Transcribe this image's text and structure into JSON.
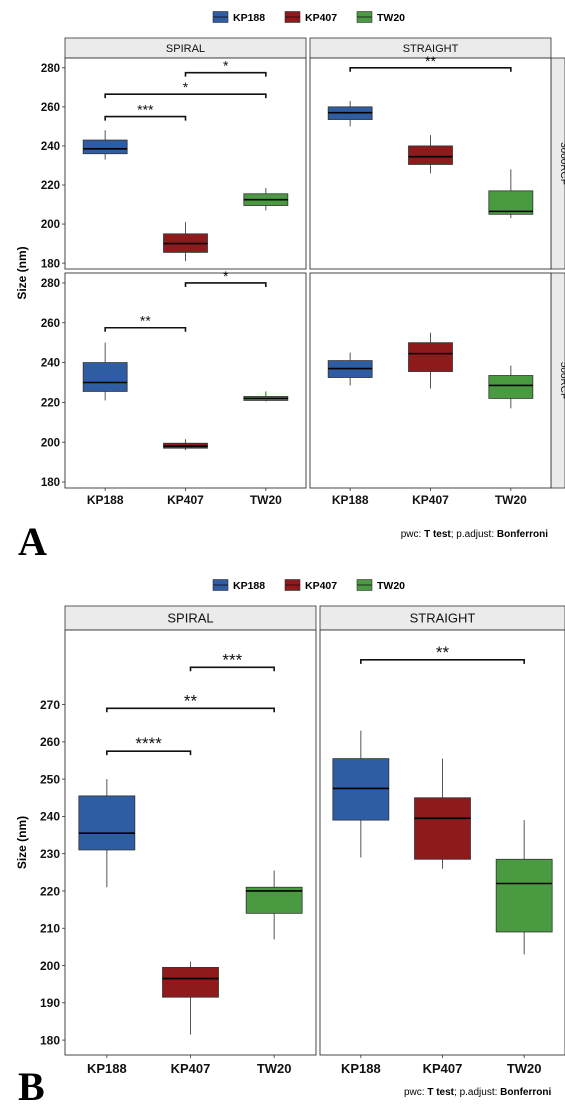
{
  "colors": {
    "KP188": "#2f5da3",
    "KP407": "#8e1a1b",
    "TW20": "#4a9a41"
  },
  "panel_A": {
    "letter": "A",
    "caption_prefix": "pwc: ",
    "caption_test": "T test",
    "caption_mid": "; p.adjust: ",
    "caption_method": "Bonferroni"
  },
  "panel_B": {
    "letter": "B",
    "caption_prefix": "pwc: ",
    "caption_test": "T test",
    "caption_mid": "; p.adjust: ",
    "caption_method": "Bonferroni"
  },
  "chart_data": [
    {
      "type": "box",
      "panel": "A",
      "legend": [
        "KP188",
        "KP407",
        "TW20"
      ],
      "legend_position": "top",
      "ylabel": "Size (nm)",
      "categories": [
        "KP188",
        "KP407",
        "TW20"
      ],
      "facet_columns": [
        "SPIRAL",
        "STRAIGHT"
      ],
      "facet_rows": [
        "3000RCF",
        "500RCF"
      ],
      "row_ylims": [
        [
          177,
          285
        ],
        [
          177,
          285
        ]
      ],
      "row_yticks": [
        [
          180,
          200,
          220,
          240,
          260,
          280
        ],
        [
          180,
          200,
          220,
          240,
          260,
          280
        ]
      ],
      "facets": [
        {
          "col": 0,
          "row": 0,
          "boxes": [
            {
              "group": "KP188",
              "min": 233,
              "q1": 236,
              "median": 238.5,
              "q3": 243,
              "max": 248
            },
            {
              "group": "KP407",
              "min": 181,
              "q1": 185.5,
              "median": 190,
              "q3": 195,
              "max": 201
            },
            {
              "group": "TW20",
              "min": 207,
              "q1": 209.5,
              "median": 212.5,
              "q3": 215.5,
              "max": 218.5
            }
          ],
          "brackets": [
            {
              "from": "KP407",
              "to": "TW20",
              "y": 277.5,
              "label": "*"
            },
            {
              "from": "KP188",
              "to": "TW20",
              "y": 266.5,
              "label": "*"
            },
            {
              "from": "KP188",
              "to": "KP407",
              "y": 255,
              "label": "***"
            }
          ]
        },
        {
          "col": 1,
          "row": 0,
          "boxes": [
            {
              "group": "KP188",
              "min": 250,
              "q1": 253.5,
              "median": 257,
              "q3": 260,
              "max": 263
            },
            {
              "group": "KP407",
              "min": 226,
              "q1": 230.5,
              "median": 234.5,
              "q3": 240,
              "max": 245.5
            },
            {
              "group": "TW20",
              "min": 203,
              "q1": 205,
              "median": 206.5,
              "q3": 217,
              "max": 228
            }
          ],
          "brackets": [
            {
              "from": "KP188",
              "to": "TW20",
              "y": 280,
              "label": "**"
            }
          ]
        },
        {
          "col": 0,
          "row": 1,
          "boxes": [
            {
              "group": "KP188",
              "min": 221,
              "q1": 225.5,
              "median": 230,
              "q3": 240,
              "max": 250
            },
            {
              "group": "KP407",
              "min": 196,
              "q1": 197,
              "median": 198,
              "q3": 199.5,
              "max": 201.5
            },
            {
              "group": "TW20",
              "min": 220.5,
              "q1": 221,
              "median": 222,
              "q3": 223,
              "max": 225.5
            }
          ],
          "brackets": [
            {
              "from": "KP407",
              "to": "TW20",
              "y": 280,
              "label": "*"
            },
            {
              "from": "KP188",
              "to": "KP407",
              "y": 257.5,
              "label": "**"
            }
          ]
        },
        {
          "col": 1,
          "row": 1,
          "boxes": [
            {
              "group": "KP188",
              "min": 228.5,
              "q1": 232.5,
              "median": 237,
              "q3": 241,
              "max": 245
            },
            {
              "group": "KP407",
              "min": 227,
              "q1": 235.5,
              "median": 244.5,
              "q3": 250,
              "max": 255
            },
            {
              "group": "TW20",
              "min": 217,
              "q1": 222,
              "median": 228.5,
              "q3": 233.5,
              "max": 238.5
            }
          ],
          "brackets": []
        }
      ]
    },
    {
      "type": "box",
      "panel": "B",
      "legend": [
        "KP188",
        "KP407",
        "TW20"
      ],
      "legend_position": "top",
      "ylabel": "Size (nm)",
      "categories": [
        "KP188",
        "KP407",
        "TW20"
      ],
      "facet_columns": [
        "SPIRAL",
        "STRAIGHT"
      ],
      "facet_rows": [],
      "row_ylims": [
        [
          176,
          290
        ]
      ],
      "row_yticks": [
        [
          180,
          190,
          200,
          210,
          220,
          230,
          240,
          250,
          260,
          270
        ]
      ],
      "facets": [
        {
          "col": 0,
          "row": 0,
          "boxes": [
            {
              "group": "KP188",
              "min": 221,
              "q1": 231,
              "median": 235.5,
              "q3": 245.5,
              "max": 250
            },
            {
              "group": "KP407",
              "min": 181.5,
              "q1": 191.5,
              "median": 196.5,
              "q3": 199.5,
              "max": 201
            },
            {
              "group": "TW20",
              "min": 207,
              "q1": 214,
              "median": 220,
              "q3": 221,
              "max": 225.5
            }
          ],
          "brackets": [
            {
              "from": "KP407",
              "to": "TW20",
              "y": 280,
              "label": "***"
            },
            {
              "from": "KP188",
              "to": "TW20",
              "y": 269,
              "label": "**"
            },
            {
              "from": "KP188",
              "to": "KP407",
              "y": 257.5,
              "label": "****"
            }
          ]
        },
        {
          "col": 1,
          "row": 0,
          "boxes": [
            {
              "group": "KP188",
              "min": 229,
              "q1": 239,
              "median": 247.5,
              "q3": 255.5,
              "max": 263
            },
            {
              "group": "KP407",
              "min": 226,
              "q1": 228.5,
              "median": 239.5,
              "q3": 245,
              "max": 255.5
            },
            {
              "group": "TW20",
              "min": 203,
              "q1": 209,
              "median": 222,
              "q3": 228.5,
              "max": 239
            }
          ],
          "brackets": [
            {
              "from": "KP188",
              "to": "TW20",
              "y": 282,
              "label": "**"
            }
          ]
        }
      ]
    }
  ]
}
